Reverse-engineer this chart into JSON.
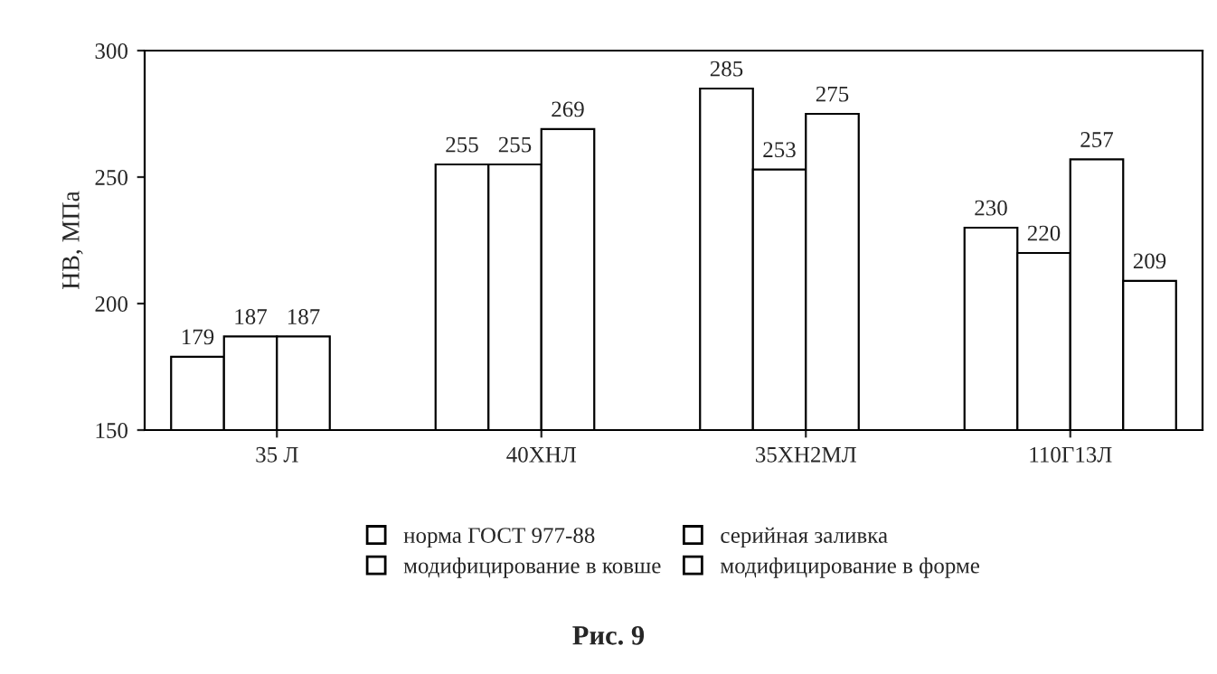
{
  "chart_data": {
    "type": "bar",
    "ylabel": "HB, МПа",
    "categories": [
      "35 Л",
      "40ХНЛ",
      "35ХН2МЛ",
      "110Г13Л"
    ],
    "series": [
      {
        "name": "норма ГОСТ 977-88",
        "color": "#ffffff",
        "values": [
          179,
          255,
          285,
          230
        ]
      },
      {
        "name": "серийная заливка",
        "color": "#ffffff",
        "values": [
          187,
          255,
          253,
          220
        ]
      },
      {
        "name": "модифицирование в ковше",
        "color": "#ffffff",
        "values": [
          187,
          269,
          275,
          257
        ]
      },
      {
        "name": "модифицирование в форме",
        "color": "#ffffff",
        "values": [
          null,
          null,
          null,
          209
        ]
      }
    ],
    "ylim": [
      150,
      300
    ],
    "yticks": [
      150,
      200,
      250,
      300
    ],
    "grid": false,
    "legend": "bottom",
    "data_labels": true,
    "annotations": [
      "Рис. 9"
    ]
  }
}
